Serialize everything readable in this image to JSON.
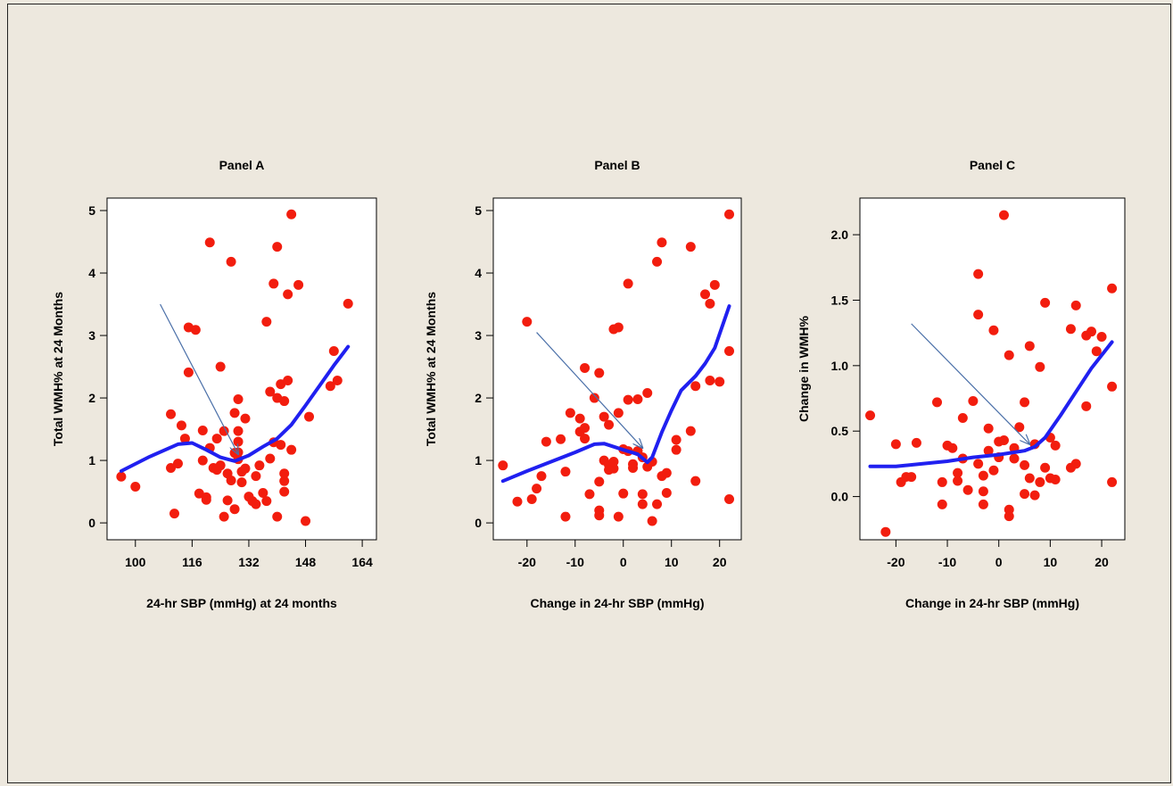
{
  "chart_data": [
    {
      "type": "scatter",
      "title": "Panel A",
      "xlabel": "24-hr SBP (mmHg) at 24 months",
      "ylabel": "Total WMH% at 24 Months",
      "xlim": [
        92,
        168
      ],
      "ylim": [
        -0.27,
        5.2
      ],
      "xticks": [
        100,
        116,
        132,
        148,
        164
      ],
      "yticks": [
        0,
        1,
        2,
        3,
        4,
        5
      ],
      "xtick_labels": [
        "100",
        "116",
        "132",
        "148",
        "164"
      ],
      "ytick_labels": [
        "0",
        "1",
        "2",
        "3",
        "4",
        "5"
      ],
      "grid": false,
      "points": [
        [
          96,
          0.74
        ],
        [
          100,
          0.58
        ],
        [
          110,
          1.74
        ],
        [
          110,
          0.88
        ],
        [
          111,
          0.15
        ],
        [
          112,
          0.95
        ],
        [
          113,
          1.56
        ],
        [
          114,
          1.35
        ],
        [
          115,
          2.41
        ],
        [
          115,
          3.13
        ],
        [
          117,
          3.09
        ],
        [
          118,
          0.47
        ],
        [
          119,
          1.48
        ],
        [
          119,
          1.0
        ],
        [
          120,
          0.41
        ],
        [
          120,
          0.37
        ],
        [
          121,
          4.49
        ],
        [
          121,
          1.2
        ],
        [
          122,
          0.88
        ],
        [
          123,
          1.35
        ],
        [
          123,
          0.85
        ],
        [
          124,
          2.5
        ],
        [
          124,
          0.92
        ],
        [
          125,
          0.1
        ],
        [
          125,
          1.47
        ],
        [
          126,
          0.79
        ],
        [
          126,
          0.36
        ],
        [
          127,
          4.18
        ],
        [
          127,
          0.68
        ],
        [
          128,
          0.22
        ],
        [
          128,
          1.76
        ],
        [
          128,
          1.12
        ],
        [
          129,
          1.98
        ],
        [
          129,
          1.47
        ],
        [
          129,
          1.3
        ],
        [
          129,
          1.13
        ],
        [
          129,
          1.02
        ],
        [
          130,
          0.82
        ],
        [
          130,
          0.65
        ],
        [
          131,
          1.67
        ],
        [
          131,
          0.87
        ],
        [
          132,
          0.42
        ],
        [
          133,
          0.35
        ],
        [
          134,
          0.75
        ],
        [
          134,
          0.3
        ],
        [
          135,
          0.92
        ],
        [
          136,
          0.48
        ],
        [
          137,
          3.22
        ],
        [
          137,
          0.35
        ],
        [
          138,
          2.1
        ],
        [
          138,
          1.03
        ],
        [
          139,
          3.83
        ],
        [
          139,
          1.29
        ],
        [
          140,
          4.42
        ],
        [
          140,
          2.0
        ],
        [
          140,
          0.1
        ],
        [
          141,
          2.22
        ],
        [
          141,
          1.25
        ],
        [
          142,
          1.95
        ],
        [
          142,
          0.5
        ],
        [
          142,
          0.67
        ],
        [
          142,
          0.79
        ],
        [
          143,
          2.28
        ],
        [
          143,
          3.66
        ],
        [
          144,
          1.17
        ],
        [
          144,
          4.94
        ],
        [
          146,
          3.81
        ],
        [
          148,
          0.03
        ],
        [
          149,
          1.7
        ],
        [
          155,
          2.19
        ],
        [
          156,
          2.75
        ],
        [
          157,
          2.28
        ],
        [
          160,
          3.51
        ]
      ],
      "lowess": [
        [
          96,
          0.83
        ],
        [
          104,
          1.06
        ],
        [
          112,
          1.26
        ],
        [
          116,
          1.28
        ],
        [
          120,
          1.17
        ],
        [
          124,
          1.05
        ],
        [
          128,
          0.99
        ],
        [
          132,
          1.08
        ],
        [
          136,
          1.22
        ],
        [
          140,
          1.35
        ],
        [
          144,
          1.57
        ],
        [
          148,
          1.88
        ],
        [
          152,
          2.2
        ],
        [
          156,
          2.52
        ],
        [
          160,
          2.82
        ]
      ],
      "arrow": [
        [
          107,
          3.5
        ],
        [
          129,
          1.1
        ]
      ]
    },
    {
      "type": "scatter",
      "title": "Panel B",
      "xlabel": "Change in 24-hr SBP (mmHg)",
      "ylabel": "Total WMH% at 24 Months",
      "xlim": [
        -27,
        24.5
      ],
      "ylim": [
        -0.27,
        5.2
      ],
      "xticks": [
        -20,
        -10,
        0,
        10,
        20
      ],
      "yticks": [
        0,
        1,
        2,
        3,
        4,
        5
      ],
      "xtick_labels": [
        "-20",
        "-10",
        "0",
        "10",
        "20"
      ],
      "ytick_labels": [
        "0",
        "1",
        "2",
        "3",
        "4",
        "5"
      ],
      "grid": false,
      "points": [
        [
          -25,
          0.92
        ],
        [
          -22,
          0.34
        ],
        [
          -20,
          3.22
        ],
        [
          -19,
          0.38
        ],
        [
          -18,
          0.55
        ],
        [
          -17,
          0.75
        ],
        [
          -16,
          1.3
        ],
        [
          -13,
          1.34
        ],
        [
          -12,
          0.82
        ],
        [
          -12,
          0.1
        ],
        [
          -11,
          1.76
        ],
        [
          -9,
          1.67
        ],
        [
          -9,
          1.46
        ],
        [
          -8,
          1.35
        ],
        [
          -8,
          2.48
        ],
        [
          -8,
          1.52
        ],
        [
          -7,
          0.46
        ],
        [
          -6,
          2.0
        ],
        [
          -5,
          0.66
        ],
        [
          -5,
          2.4
        ],
        [
          -5,
          0.2
        ],
        [
          -5,
          0.12
        ],
        [
          -4,
          1.0
        ],
        [
          -4,
          1.7
        ],
        [
          -3,
          0.93
        ],
        [
          -3,
          0.85
        ],
        [
          -3,
          1.57
        ],
        [
          -2,
          0.87
        ],
        [
          -2,
          0.98
        ],
        [
          -2,
          3.1
        ],
        [
          -1,
          3.13
        ],
        [
          -1,
          1.76
        ],
        [
          -1,
          0.1
        ],
        [
          0,
          1.18
        ],
        [
          0,
          0.47
        ],
        [
          1,
          3.83
        ],
        [
          1,
          1.15
        ],
        [
          1,
          1.97
        ],
        [
          2,
          0.88
        ],
        [
          2,
          0.94
        ],
        [
          3,
          1.98
        ],
        [
          3,
          1.15
        ],
        [
          4,
          0.46
        ],
        [
          4,
          0.3
        ],
        [
          4,
          1.05
        ],
        [
          5,
          0.9
        ],
        [
          5,
          2.08
        ],
        [
          6,
          0.03
        ],
        [
          6,
          0.98
        ],
        [
          7,
          4.18
        ],
        [
          7,
          0.3
        ],
        [
          8,
          4.49
        ],
        [
          8,
          0.75
        ],
        [
          9,
          0.8
        ],
        [
          9,
          0.48
        ],
        [
          11,
          1.33
        ],
        [
          11,
          1.17
        ],
        [
          14,
          4.42
        ],
        [
          14,
          1.47
        ],
        [
          15,
          0.67
        ],
        [
          15,
          2.19
        ],
        [
          17,
          3.66
        ],
        [
          18,
          3.51
        ],
        [
          18,
          2.28
        ],
        [
          19,
          3.81
        ],
        [
          20,
          2.26
        ],
        [
          22,
          4.94
        ],
        [
          22,
          2.75
        ],
        [
          22,
          0.38
        ]
      ],
      "lowess": [
        [
          -25,
          0.67
        ],
        [
          -20,
          0.83
        ],
        [
          -15,
          0.98
        ],
        [
          -10,
          1.13
        ],
        [
          -6,
          1.26
        ],
        [
          -4,
          1.27
        ],
        [
          0,
          1.17
        ],
        [
          3,
          1.1
        ],
        [
          5,
          0.97
        ],
        [
          6,
          1.05
        ],
        [
          8,
          1.45
        ],
        [
          10,
          1.8
        ],
        [
          12,
          2.12
        ],
        [
          15,
          2.35
        ],
        [
          17,
          2.55
        ],
        [
          19,
          2.8
        ],
        [
          22,
          3.47
        ]
      ],
      "arrow": [
        [
          -18,
          3.05
        ],
        [
          4,
          1.2
        ]
      ]
    },
    {
      "type": "scatter",
      "title": "Panel C",
      "xlabel": "Change in 24-hr SBP (mmHg)",
      "ylabel": "Change in WMH%",
      "xlim": [
        -27,
        24.5
      ],
      "ylim": [
        -0.33,
        2.28
      ],
      "xticks": [
        -20,
        -10,
        0,
        10,
        20
      ],
      "yticks": [
        0,
        0.5,
        1,
        1.5,
        2
      ],
      "xtick_labels": [
        "-20",
        "-10",
        "0",
        "10",
        "20"
      ],
      "ytick_labels": [
        "0.0",
        "0.5",
        "1.0",
        "1.5",
        "2.0"
      ],
      "grid": false,
      "points": [
        [
          -25,
          0.62
        ],
        [
          -22,
          -0.27
        ],
        [
          -20,
          0.4
        ],
        [
          -19,
          0.11
        ],
        [
          -18,
          0.15
        ],
        [
          -17,
          0.15
        ],
        [
          -16,
          0.41
        ],
        [
          -12,
          0.72
        ],
        [
          -11,
          -0.06
        ],
        [
          -11,
          0.11
        ],
        [
          -10,
          0.39
        ],
        [
          -9,
          0.37
        ],
        [
          -8,
          0.18
        ],
        [
          -8,
          0.12
        ],
        [
          -7,
          0.6
        ],
        [
          -7,
          0.29
        ],
        [
          -6,
          0.05
        ],
        [
          -5,
          0.73
        ],
        [
          -4,
          1.7
        ],
        [
          -4,
          1.39
        ],
        [
          -4,
          0.25
        ],
        [
          -3,
          0.16
        ],
        [
          -3,
          -0.06
        ],
        [
          -3,
          0.04
        ],
        [
          -2,
          0.52
        ],
        [
          -2,
          0.35
        ],
        [
          -1,
          1.27
        ],
        [
          -1,
          0.2
        ],
        [
          0,
          0.42
        ],
        [
          0,
          0.3
        ],
        [
          1,
          2.15
        ],
        [
          1,
          0.43
        ],
        [
          2,
          -0.15
        ],
        [
          2,
          -0.1
        ],
        [
          2,
          1.08
        ],
        [
          3,
          0.29
        ],
        [
          3,
          0.37
        ],
        [
          4,
          0.53
        ],
        [
          5,
          0.72
        ],
        [
          5,
          0.24
        ],
        [
          5,
          0.02
        ],
        [
          6,
          1.15
        ],
        [
          6,
          0.14
        ],
        [
          7,
          0.4
        ],
        [
          7,
          0.01
        ],
        [
          8,
          0.99
        ],
        [
          8,
          0.11
        ],
        [
          9,
          1.48
        ],
        [
          9,
          0.22
        ],
        [
          10,
          0.14
        ],
        [
          10,
          0.45
        ],
        [
          11,
          0.39
        ],
        [
          11,
          0.13
        ],
        [
          14,
          1.28
        ],
        [
          14,
          0.22
        ],
        [
          15,
          1.46
        ],
        [
          15,
          0.25
        ],
        [
          17,
          0.69
        ],
        [
          17,
          1.23
        ],
        [
          18,
          1.26
        ],
        [
          19,
          1.11
        ],
        [
          20,
          1.22
        ],
        [
          22,
          0.84
        ],
        [
          22,
          1.59
        ],
        [
          22,
          0.11
        ]
      ],
      "lowess": [
        [
          -25,
          0.23
        ],
        [
          -20,
          0.23
        ],
        [
          -15,
          0.25
        ],
        [
          -10,
          0.27
        ],
        [
          -5,
          0.3
        ],
        [
          0,
          0.32
        ],
        [
          5,
          0.35
        ],
        [
          7,
          0.38
        ],
        [
          9,
          0.45
        ],
        [
          12,
          0.62
        ],
        [
          15,
          0.8
        ],
        [
          18,
          0.98
        ],
        [
          22,
          1.18
        ]
      ],
      "arrow": [
        [
          -17,
          1.32
        ],
        [
          6,
          0.4
        ]
      ]
    }
  ]
}
